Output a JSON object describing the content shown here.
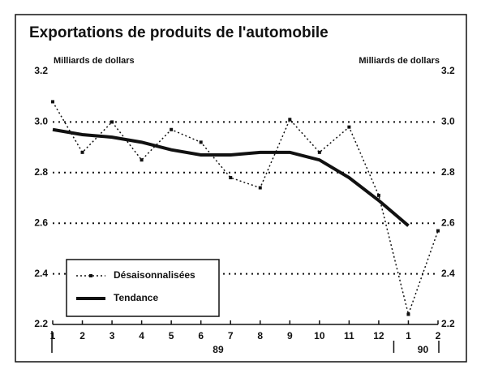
{
  "chart_data": {
    "type": "line",
    "title": "Exportations de produits de l'automobile",
    "y_label": "Milliards de dollars",
    "y2_label": "Milliards de dollars",
    "categories": [
      "1",
      "2",
      "3",
      "4",
      "5",
      "6",
      "7",
      "8",
      "9",
      "10",
      "11",
      "12",
      "1",
      "2"
    ],
    "x_group_labels": [
      "89",
      "90"
    ],
    "series": [
      {
        "name": "Désaisonnalisées",
        "color": "#111111",
        "style": "dotted",
        "values": [
          3.08,
          2.88,
          3.0,
          2.85,
          2.97,
          2.92,
          2.78,
          2.74,
          3.01,
          2.88,
          2.98,
          2.71,
          2.24,
          2.57
        ]
      },
      {
        "name": "Tendance",
        "color": "#111111",
        "style": "solid",
        "values": [
          2.97,
          2.95,
          2.94,
          2.92,
          2.89,
          2.87,
          2.87,
          2.88,
          2.88,
          2.85,
          2.78,
          2.69,
          2.59,
          null
        ]
      }
    ],
    "ylim": [
      2.2,
      3.2
    ],
    "yticks": [
      2.2,
      2.4,
      2.6,
      2.8,
      {
        "value": 3.0,
        "label": "3.0"
      },
      3.2
    ],
    "y2lim": [
      2.2,
      3.2
    ],
    "y2ticks": [
      2.2,
      2.4,
      2.6,
      2.8,
      {
        "value": 3.0,
        "label": "3.0"
      },
      3.2
    ],
    "grid": true,
    "legend": "lower left"
  }
}
